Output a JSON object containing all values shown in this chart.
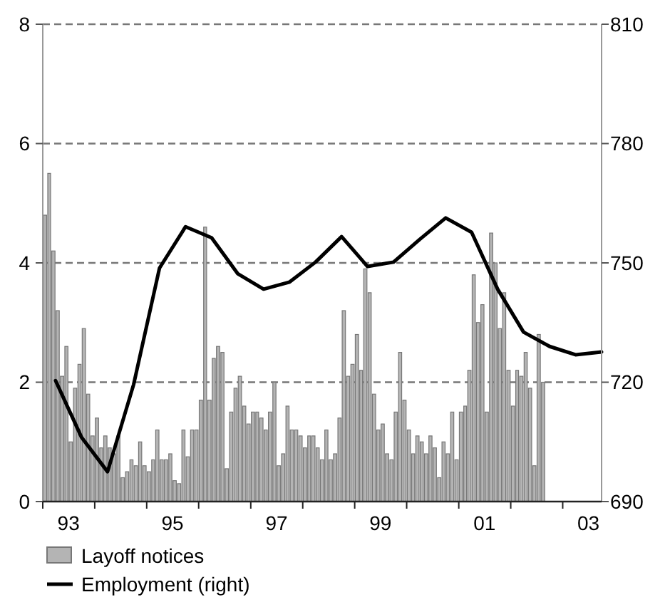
{
  "chart_data": {
    "type": "bar",
    "xlim": [
      "1993",
      "2003-10"
    ],
    "xticks": [
      {
        "value": "1993",
        "label": null
      },
      {
        "value": "1993-07",
        "label": "93"
      },
      {
        "value": "1994",
        "label": null
      },
      {
        "value": "1995",
        "label": null
      },
      {
        "value": "1995-07",
        "label": "95"
      },
      {
        "value": "1996",
        "label": null
      },
      {
        "value": "1997",
        "label": null
      },
      {
        "value": "1997-07",
        "label": "97"
      },
      {
        "value": "1998",
        "label": null
      },
      {
        "value": "1999",
        "label": null
      },
      {
        "value": "1999-07",
        "label": "99"
      },
      {
        "value": "2000",
        "label": null
      },
      {
        "value": "2001",
        "label": null
      },
      {
        "value": "2001-07",
        "label": "01"
      },
      {
        "value": "2002",
        "label": null
      },
      {
        "value": "2003",
        "label": null
      },
      {
        "value": "2003-07",
        "label": "03"
      }
    ],
    "ylim": [
      0,
      8
    ],
    "yticks": [
      0,
      2,
      4,
      6,
      8
    ],
    "y2lim": [
      690,
      810
    ],
    "y2ticks": [
      690,
      720,
      750,
      780,
      810
    ],
    "grid": "y",
    "legend": "bottom",
    "series": [
      {
        "name": "Layoff notices",
        "color": "#b4b4b4",
        "x": [
          "1993-01",
          "1993-02",
          "1993-03",
          "1993-04",
          "1993-05",
          "1993-06",
          "1993-07",
          "1993-08",
          "1993-09",
          "1993-10",
          "1993-11",
          "1993-12",
          "1994-01",
          "1994-02",
          "1994-03",
          "1994-04",
          "1994-05",
          "1994-06",
          "1994-07",
          "1994-08",
          "1994-09",
          "1994-10",
          "1994-11",
          "1994-12",
          "1995-01",
          "1995-02",
          "1995-03",
          "1995-04",
          "1995-05",
          "1995-06",
          "1995-07",
          "1995-08",
          "1995-09",
          "1995-10",
          "1995-11",
          "1995-12",
          "1996-01",
          "1996-02",
          "1996-03",
          "1996-04",
          "1996-05",
          "1996-06",
          "1996-07",
          "1996-08",
          "1996-09",
          "1996-10",
          "1996-11",
          "1996-12",
          "1997-01",
          "1997-02",
          "1997-03",
          "1997-04",
          "1997-05",
          "1997-06",
          "1997-07",
          "1997-08",
          "1997-09",
          "1997-10",
          "1997-11",
          "1997-12",
          "1998-01",
          "1998-02",
          "1998-03",
          "1998-04",
          "1998-05",
          "1998-06",
          "1998-07",
          "1998-08",
          "1998-09",
          "1998-10",
          "1998-11",
          "1998-12",
          "1999-01",
          "1999-02",
          "1999-03",
          "1999-04",
          "1999-05",
          "1999-06",
          "1999-07",
          "1999-08",
          "1999-09",
          "1999-10",
          "1999-11",
          "1999-12",
          "2000-01",
          "2000-02",
          "2000-03",
          "2000-04",
          "2000-05",
          "2000-06",
          "2000-07",
          "2000-08",
          "2000-09",
          "2000-10",
          "2000-11",
          "2000-12",
          "2001-01",
          "2001-02",
          "2001-03",
          "2001-04",
          "2001-05",
          "2001-06",
          "2001-07",
          "2001-08",
          "2001-09",
          "2001-10",
          "2001-11",
          "2001-12",
          "2002-01",
          "2002-02",
          "2002-03",
          "2002-04",
          "2002-05",
          "2002-06",
          "2002-07",
          "2002-08"
        ],
        "values": [
          4.8,
          5.5,
          4.2,
          3.2,
          2.1,
          2.6,
          1.0,
          1.9,
          2.3,
          2.9,
          1.8,
          1.1,
          1.4,
          0.9,
          1.1,
          0.9,
          0.8,
          1.1,
          0.4,
          0.5,
          0.7,
          0.6,
          1.0,
          0.6,
          0.5,
          0.7,
          1.2,
          0.7,
          0.7,
          0.8,
          0.35,
          0.3,
          1.2,
          0.75,
          1.2,
          1.2,
          1.7,
          4.6,
          1.7,
          2.4,
          2.6,
          2.5,
          0.55,
          1.5,
          1.9,
          2.1,
          1.6,
          1.3,
          1.5,
          1.5,
          1.4,
          1.2,
          1.5,
          2.0,
          0.6,
          0.8,
          1.6,
          1.2,
          1.2,
          1.1,
          0.9,
          1.1,
          1.1,
          0.9,
          0.7,
          1.2,
          0.7,
          0.8,
          1.4,
          3.2,
          2.1,
          2.3,
          2.8,
          2.2,
          3.9,
          3.5,
          1.8,
          1.2,
          1.3,
          0.8,
          0.7,
          1.5,
          2.5,
          1.7,
          1.2,
          0.8,
          1.1,
          1.0,
          0.8,
          1.1,
          0.9,
          0.4,
          1.0,
          0.8,
          1.5,
          0.7,
          1.5,
          1.6,
          2.2,
          3.8,
          3.0,
          3.3,
          1.5,
          4.5,
          4.0,
          2.9,
          3.5,
          2.2,
          1.6,
          2.2,
          2.1,
          2.5,
          1.9,
          0.6,
          2.8,
          2.0
        ]
      },
      {
        "name": "Employment (right)",
        "type": "line",
        "axis": "y2",
        "color": "#000000",
        "x": [
          "1993-04",
          "1993-10",
          "1994-04",
          "1994-10",
          "1995-04",
          "1995-10",
          "1996-04",
          "1996-10",
          "1997-04",
          "1997-10",
          "1998-04",
          "1998-10",
          "1999-04",
          "1999-10",
          "2000-04",
          "2000-10",
          "2001-04",
          "2001-10",
          "2002-04",
          "2002-10",
          "2003-04",
          "2003-10"
        ],
        "values": [
          720.4,
          706.1,
          697.5,
          719.4,
          748.7,
          759.1,
          756.3,
          747.3,
          743.4,
          745.2,
          750.2,
          756.6,
          749.1,
          750.2,
          755.9,
          761.3,
          757.7,
          743.4,
          732.6,
          729.0,
          726.9,
          727.6
        ]
      }
    ]
  }
}
